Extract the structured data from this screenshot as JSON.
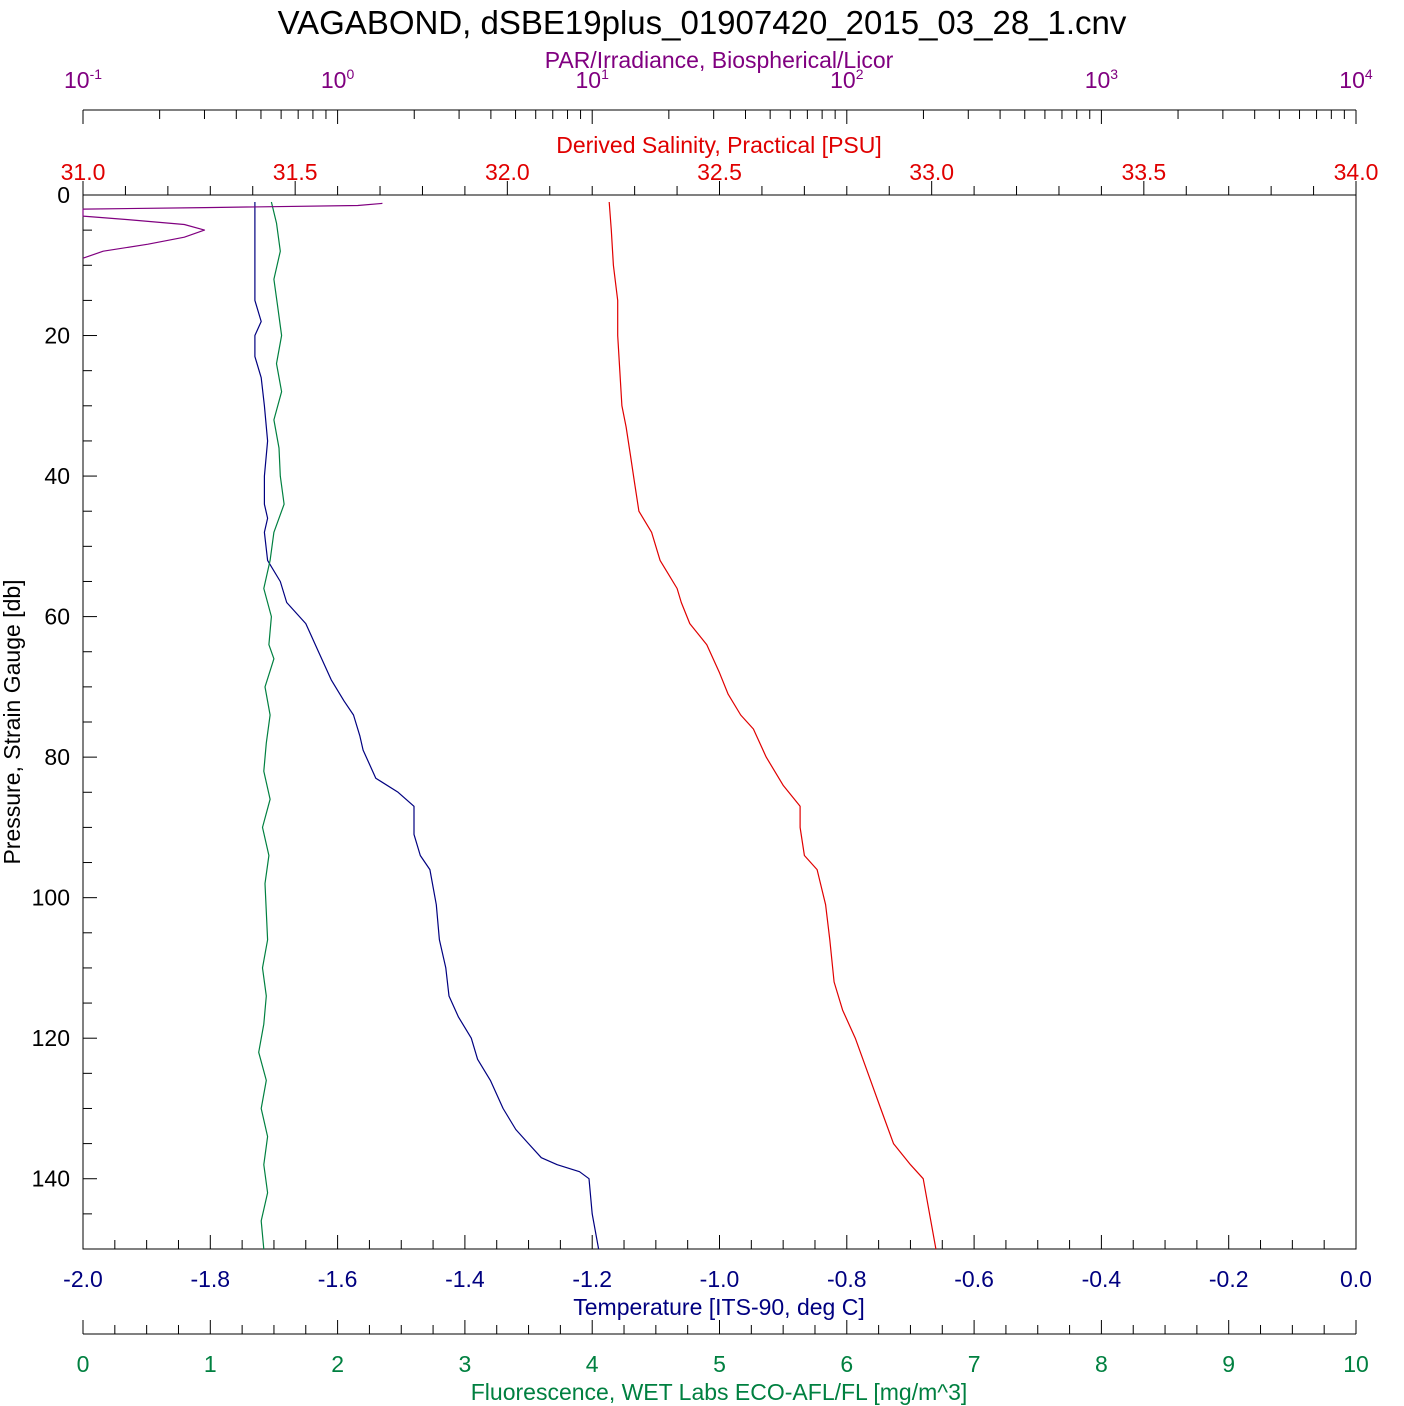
{
  "title": "VAGABOND, dSBE19plus_01907420_2015_03_28_1.cnv",
  "colors": {
    "par": "#800080",
    "salinity": "#e00000",
    "temperature": "#000080",
    "fluorescence": "#008040",
    "frame": "#000000"
  },
  "chart_data": {
    "type": "line",
    "y_axis": {
      "label": "Pressure, Strain Gauge [db]",
      "range": [
        0,
        150
      ],
      "inverted": true,
      "ticks": [
        "0",
        "20",
        "40",
        "60",
        "80",
        "100",
        "120",
        "140"
      ]
    },
    "x_axes": [
      {
        "id": "par",
        "label": "PAR/Irradiance, Biospherical/Licor",
        "scale": "log",
        "range": [
          0.1,
          10000
        ],
        "ticks": [
          {
            "base": "10",
            "exp": "-1"
          },
          {
            "base": "10",
            "exp": "0"
          },
          {
            "base": "10",
            "exp": "1"
          },
          {
            "base": "10",
            "exp": "2"
          },
          {
            "base": "10",
            "exp": "3"
          },
          {
            "base": "10",
            "exp": "4"
          }
        ]
      },
      {
        "id": "salinity",
        "label": "Derived Salinity, Practical [PSU]",
        "scale": "linear",
        "range": [
          31.0,
          34.0
        ],
        "ticks": [
          "31.0",
          "31.5",
          "32.0",
          "32.5",
          "33.0",
          "33.5",
          "34.0"
        ]
      },
      {
        "id": "temperature",
        "label": "Temperature [ITS-90, deg C]",
        "scale": "linear",
        "range": [
          -2.0,
          0.0
        ],
        "ticks": [
          "-2.0",
          "-1.8",
          "-1.6",
          "-1.4",
          "-1.2",
          "-1.0",
          "-0.8",
          "-0.6",
          "-0.4",
          "-0.2",
          "0.0"
        ]
      },
      {
        "id": "fluorescence",
        "label": "Fluorescence, WET Labs ECO-AFL/FL [mg/m^3]",
        "scale": "linear",
        "range": [
          0,
          10
        ],
        "ticks": [
          "0",
          "1",
          "2",
          "3",
          "4",
          "5",
          "6",
          "7",
          "8",
          "9",
          "10"
        ]
      }
    ],
    "grid": false,
    "series": [
      {
        "axis": "salinity",
        "color": "#e00000",
        "points": [
          [
            32.24,
            1
          ],
          [
            32.245,
            5
          ],
          [
            32.25,
            10
          ],
          [
            32.26,
            15
          ],
          [
            32.26,
            20
          ],
          [
            32.265,
            25
          ],
          [
            32.27,
            30
          ],
          [
            32.28,
            33
          ],
          [
            32.29,
            37
          ],
          [
            32.3,
            41
          ],
          [
            32.31,
            45
          ],
          [
            32.34,
            48
          ],
          [
            32.36,
            52
          ],
          [
            32.38,
            54
          ],
          [
            32.4,
            56
          ],
          [
            32.41,
            58
          ],
          [
            32.43,
            61
          ],
          [
            32.47,
            64
          ],
          [
            32.5,
            68
          ],
          [
            32.52,
            71
          ],
          [
            32.55,
            74
          ],
          [
            32.58,
            76
          ],
          [
            32.61,
            80
          ],
          [
            32.65,
            84
          ],
          [
            32.69,
            87
          ],
          [
            32.69,
            90
          ],
          [
            32.7,
            94
          ],
          [
            32.73,
            96
          ],
          [
            32.75,
            101
          ],
          [
            32.76,
            106
          ],
          [
            32.77,
            112
          ],
          [
            32.79,
            116
          ],
          [
            32.82,
            120
          ],
          [
            32.85,
            125
          ],
          [
            32.88,
            130
          ],
          [
            32.91,
            135
          ],
          [
            32.95,
            138
          ],
          [
            32.98,
            140
          ],
          [
            33.01,
            150
          ]
        ]
      },
      {
        "axis": "temperature",
        "color": "#000080",
        "points": [
          [
            -1.73,
            1
          ],
          [
            -1.73,
            5
          ],
          [
            -1.73,
            10
          ],
          [
            -1.73,
            15
          ],
          [
            -1.72,
            18
          ],
          [
            -1.73,
            20
          ],
          [
            -1.73,
            23
          ],
          [
            -1.72,
            26
          ],
          [
            -1.715,
            30
          ],
          [
            -1.71,
            35
          ],
          [
            -1.715,
            40
          ],
          [
            -1.715,
            44
          ],
          [
            -1.71,
            46
          ],
          [
            -1.715,
            48
          ],
          [
            -1.71,
            52
          ],
          [
            -1.69,
            55
          ],
          [
            -1.68,
            58
          ],
          [
            -1.65,
            61
          ],
          [
            -1.63,
            65
          ],
          [
            -1.61,
            69
          ],
          [
            -1.59,
            72
          ],
          [
            -1.575,
            74
          ],
          [
            -1.565,
            77
          ],
          [
            -1.56,
            79
          ],
          [
            -1.54,
            83
          ],
          [
            -1.505,
            85
          ],
          [
            -1.48,
            87
          ],
          [
            -1.48,
            91
          ],
          [
            -1.47,
            94
          ],
          [
            -1.455,
            96
          ],
          [
            -1.445,
            101
          ],
          [
            -1.44,
            106
          ],
          [
            -1.43,
            110
          ],
          [
            -1.425,
            114
          ],
          [
            -1.41,
            117
          ],
          [
            -1.39,
            120
          ],
          [
            -1.38,
            123
          ],
          [
            -1.36,
            126
          ],
          [
            -1.34,
            130
          ],
          [
            -1.32,
            133
          ],
          [
            -1.3,
            135
          ],
          [
            -1.28,
            137
          ],
          [
            -1.255,
            138
          ],
          [
            -1.22,
            139
          ],
          [
            -1.205,
            140
          ],
          [
            -1.2,
            145
          ],
          [
            -1.19,
            150
          ]
        ]
      },
      {
        "axis": "fluorescence",
        "color": "#008040",
        "points": [
          [
            1.48,
            1
          ],
          [
            1.52,
            4
          ],
          [
            1.55,
            8
          ],
          [
            1.5,
            12
          ],
          [
            1.53,
            16
          ],
          [
            1.56,
            20
          ],
          [
            1.52,
            24
          ],
          [
            1.56,
            28
          ],
          [
            1.5,
            32
          ],
          [
            1.54,
            36
          ],
          [
            1.55,
            40
          ],
          [
            1.58,
            44
          ],
          [
            1.5,
            48
          ],
          [
            1.47,
            52
          ],
          [
            1.42,
            56
          ],
          [
            1.48,
            60
          ],
          [
            1.46,
            64
          ],
          [
            1.5,
            66
          ],
          [
            1.43,
            70
          ],
          [
            1.47,
            74
          ],
          [
            1.44,
            78
          ],
          [
            1.42,
            82
          ],
          [
            1.47,
            86
          ],
          [
            1.41,
            90
          ],
          [
            1.46,
            94
          ],
          [
            1.43,
            98
          ],
          [
            1.44,
            102
          ],
          [
            1.45,
            106
          ],
          [
            1.41,
            110
          ],
          [
            1.44,
            114
          ],
          [
            1.42,
            118
          ],
          [
            1.38,
            122
          ],
          [
            1.44,
            126
          ],
          [
            1.4,
            130
          ],
          [
            1.45,
            134
          ],
          [
            1.42,
            138
          ],
          [
            1.45,
            142
          ],
          [
            1.4,
            146
          ],
          [
            1.42,
            150
          ]
        ]
      },
      {
        "axis": "par",
        "color": "#800080",
        "points": [
          [
            1.5,
            1.2
          ],
          [
            1.2,
            1.5
          ],
          [
            0.3,
            1.8
          ],
          [
            0.1,
            2
          ],
          [
            0.1,
            3
          ],
          [
            0.15,
            3.5
          ],
          [
            0.25,
            4.2
          ],
          [
            0.3,
            5
          ],
          [
            0.25,
            6
          ],
          [
            0.18,
            7
          ],
          [
            0.12,
            8
          ],
          [
            0.1,
            9
          ]
        ]
      }
    ]
  }
}
